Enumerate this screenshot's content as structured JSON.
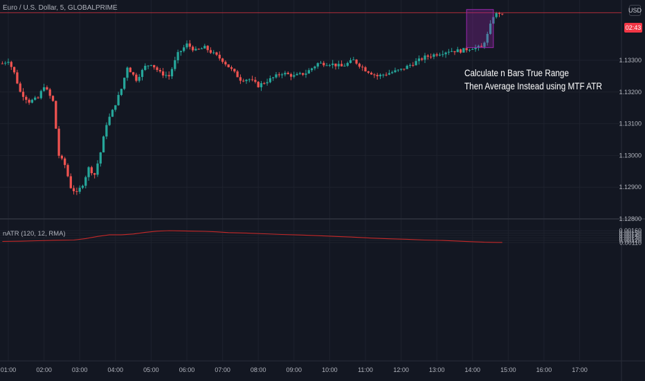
{
  "header": {
    "symbol": "Euro / U.S. Dollar, 5, GLOBALPRIME",
    "currency": "USD",
    "indicator": "nATR (120, 12, RMA)"
  },
  "annotation": {
    "line1": "Calculate n Bars True Range",
    "line2": "Then Average Instead using MTF ATR"
  },
  "price_scale": {
    "labels": [
      "1.13300",
      "1.13200",
      "1.13100",
      "1.13000",
      "1.12900",
      "1.12800"
    ],
    "countdown": "02:43"
  },
  "colors": {
    "background": "#131722",
    "up_candle": "#26a69a",
    "down_candle": "#ef5350",
    "indicator_line": "#c62828",
    "highlight_box": "#9c27b0"
  },
  "chart_data": [
    {
      "type": "candlestick",
      "title": "Euro / U.S. Dollar, 5, GLOBALPRIME",
      "x_ticks": [
        "01:00",
        "02:00",
        "03:00",
        "04:00",
        "05:00",
        "06:00",
        "07:00",
        "08:00",
        "09:00",
        "10:00",
        "11:00",
        "12:00",
        "13:00",
        "14:00",
        "15:00",
        "16:00",
        "17:00"
      ],
      "ylim": [
        1.1278,
        1.1348
      ],
      "y_ticks": [
        1.128,
        1.129,
        1.13,
        1.131,
        1.132,
        1.133
      ],
      "price_line": 1.1345,
      "price_path": [
        [
          "00:50",
          1.1329
        ],
        [
          "01:00",
          1.133
        ],
        [
          "01:10",
          1.1326
        ],
        [
          "01:20",
          1.132
        ],
        [
          "01:35",
          1.1317
        ],
        [
          "01:50",
          1.1318
        ],
        [
          "02:00",
          1.1322
        ],
        [
          "02:15",
          1.1317
        ],
        [
          "02:25",
          1.13
        ],
        [
          "02:35",
          1.1297
        ],
        [
          "02:45",
          1.129
        ],
        [
          "02:55",
          1.1288
        ],
        [
          "03:05",
          1.1291
        ],
        [
          "03:15",
          1.1296
        ],
        [
          "03:25",
          1.1294
        ],
        [
          "03:35",
          1.1301
        ],
        [
          "03:45",
          1.131
        ],
        [
          "03:55",
          1.1314
        ],
        [
          "04:10",
          1.1321
        ],
        [
          "04:20",
          1.1328
        ],
        [
          "04:35",
          1.1324
        ],
        [
          "04:50",
          1.1328
        ],
        [
          "05:00",
          1.1329
        ],
        [
          "05:15",
          1.1326
        ],
        [
          "05:30",
          1.1325
        ],
        [
          "05:45",
          1.1332
        ],
        [
          "06:00",
          1.1335
        ],
        [
          "06:15",
          1.1333
        ],
        [
          "06:30",
          1.1334
        ],
        [
          "06:45",
          1.1332
        ],
        [
          "07:00",
          1.133
        ],
        [
          "07:15",
          1.1327
        ],
        [
          "07:30",
          1.1324
        ],
        [
          "07:45",
          1.1324
        ],
        [
          "08:00",
          1.1322
        ],
        [
          "08:20",
          1.1324
        ],
        [
          "08:40",
          1.1326
        ],
        [
          "09:00",
          1.1325
        ],
        [
          "09:20",
          1.1326
        ],
        [
          "09:40",
          1.1329
        ],
        [
          "10:00",
          1.1329
        ],
        [
          "10:20",
          1.1328
        ],
        [
          "10:40",
          1.133
        ],
        [
          "11:00",
          1.1327
        ],
        [
          "11:20",
          1.1325
        ],
        [
          "11:40",
          1.1326
        ],
        [
          "12:00",
          1.1327
        ],
        [
          "12:20",
          1.1329
        ],
        [
          "12:40",
          1.1331
        ],
        [
          "13:00",
          1.1332
        ],
        [
          "13:20",
          1.1333
        ],
        [
          "13:40",
          1.1333
        ],
        [
          "14:00",
          1.1334
        ],
        [
          "14:15",
          1.1334
        ],
        [
          "14:25",
          1.1338
        ],
        [
          "14:35",
          1.1344
        ],
        [
          "14:45",
          1.1345
        ],
        [
          "14:50",
          1.1344
        ]
      ],
      "highlight": {
        "x_range": [
          "13:50",
          "14:35"
        ],
        "y_range": [
          1.1334,
          1.1346
        ]
      }
    },
    {
      "type": "line",
      "title": "nATR (120, 12, RMA)",
      "ylim": [
        0.00105,
        0.00165
      ],
      "y_ticks": [
        0.0011,
        0.0012,
        0.0013,
        0.0014,
        0.0015,
        0.0016
      ],
      "series": [
        {
          "name": "nATR (120, 12, RMA)",
          "x": [
            "00:50",
            "01:20",
            "01:50",
            "02:20",
            "02:50",
            "03:10",
            "03:30",
            "03:50",
            "04:10",
            "04:30",
            "04:50",
            "05:10",
            "05:30",
            "05:50",
            "06:10",
            "06:30",
            "06:50",
            "07:10",
            "07:40",
            "08:10",
            "08:40",
            "09:10",
            "09:40",
            "10:10",
            "10:40",
            "11:10",
            "11:40",
            "12:10",
            "12:40",
            "13:10",
            "13:40",
            "14:00",
            "14:20",
            "14:40",
            "14:50"
          ],
          "values": [
            0.00115,
            0.00116,
            0.00118,
            0.0012,
            0.00121,
            0.00127,
            0.00136,
            0.00143,
            0.00143,
            0.00146,
            0.00153,
            0.00158,
            0.0016,
            0.00159,
            0.00158,
            0.00157,
            0.00155,
            0.00152,
            0.0015,
            0.00147,
            0.00144,
            0.00142,
            0.00139,
            0.00136,
            0.00133,
            0.00129,
            0.00126,
            0.00124,
            0.00121,
            0.00119,
            0.00116,
            0.00114,
            0.00112,
            0.00111,
            0.00111
          ]
        }
      ]
    }
  ]
}
